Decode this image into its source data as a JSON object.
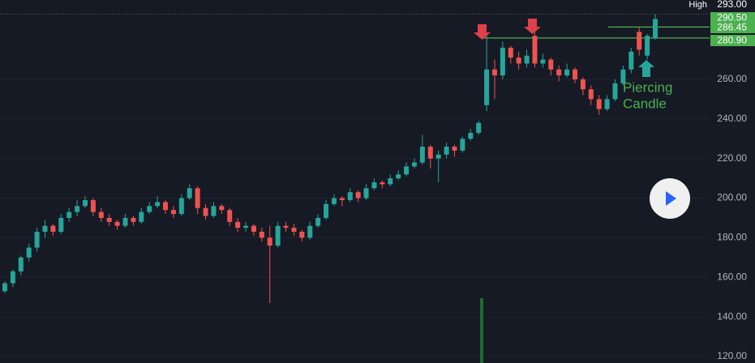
{
  "chart_data": {
    "type": "candlestick",
    "up_color": "#26a69a",
    "down_color": "#ef5350",
    "ylim": [
      116.7,
      300.1
    ],
    "yticks": [
      {
        "value": 120,
        "label": "120.00"
      },
      {
        "value": 140,
        "label": "140.00"
      },
      {
        "value": 160,
        "label": "160.00"
      },
      {
        "value": 180,
        "label": "180.00"
      },
      {
        "value": 200,
        "label": "200.00"
      },
      {
        "value": 220,
        "label": "220.00"
      },
      {
        "value": 240,
        "label": "240.00"
      },
      {
        "value": 260,
        "label": "260.00"
      }
    ],
    "grid": true,
    "high_label": "High",
    "high_value": {
      "value": 293,
      "label": "293.00"
    },
    "levels": [
      {
        "value": 290.5,
        "label": "290.50"
      },
      {
        "value": 286.45,
        "label": "286.45"
      },
      {
        "value": 280.9,
        "label": "280.90"
      }
    ],
    "level_color": "#4caf50",
    "annotation_lines": [
      "Piercing",
      "Candle"
    ],
    "candles": [
      [
        153,
        158,
        152,
        157
      ],
      [
        157,
        164,
        155,
        163
      ],
      [
        163,
        171,
        161,
        170
      ],
      [
        170,
        177,
        168,
        175
      ],
      [
        175,
        185,
        173,
        183
      ],
      [
        183,
        189,
        180,
        186
      ],
      [
        186,
        187,
        181,
        183
      ],
      [
        183,
        192,
        182,
        190
      ],
      [
        190,
        195,
        188,
        193
      ],
      [
        193,
        199,
        191,
        196
      ],
      [
        196,
        201,
        195,
        199
      ],
      [
        199,
        200,
        191,
        193
      ],
      [
        193,
        195,
        188,
        190
      ],
      [
        190,
        192,
        186,
        188
      ],
      [
        188,
        189,
        184,
        186
      ],
      [
        186,
        192,
        185,
        190
      ],
      [
        190,
        191,
        186,
        188
      ],
      [
        188,
        195,
        187,
        193
      ],
      [
        193,
        198,
        192,
        196
      ],
      [
        196,
        201,
        195,
        198
      ],
      [
        198,
        199,
        192,
        194
      ],
      [
        194,
        196,
        190,
        192
      ],
      [
        192,
        202,
        191,
        200
      ],
      [
        200,
        207,
        199,
        205
      ],
      [
        205,
        206,
        192,
        195
      ],
      [
        195,
        197,
        189,
        191
      ],
      [
        191,
        198,
        190,
        196
      ],
      [
        196,
        197,
        192,
        194
      ],
      [
        194,
        195,
        186,
        188
      ],
      [
        188,
        190,
        183,
        185
      ],
      [
        185,
        188,
        183,
        186
      ],
      [
        186,
        187,
        181,
        183
      ],
      [
        183,
        185,
        178,
        180
      ],
      [
        180,
        186,
        147,
        176
      ],
      [
        176,
        188,
        175,
        186
      ],
      [
        186,
        188,
        183,
        185
      ],
      [
        185,
        187,
        181,
        183
      ],
      [
        183,
        184,
        178,
        180
      ],
      [
        180,
        188,
        179,
        186
      ],
      [
        186,
        192,
        185,
        190
      ],
      [
        190,
        199,
        189,
        197
      ],
      [
        197,
        202,
        196,
        200
      ],
      [
        200,
        201,
        196,
        199
      ],
      [
        199,
        205,
        198,
        203
      ],
      [
        203,
        204,
        198,
        200
      ],
      [
        200,
        207,
        199,
        205
      ],
      [
        205,
        210,
        204,
        208
      ],
      [
        208,
        209,
        205,
        207
      ],
      [
        207,
        212,
        206,
        210
      ],
      [
        210,
        214,
        209,
        212
      ],
      [
        212,
        218,
        211,
        216
      ],
      [
        216,
        220,
        215,
        218
      ],
      [
        218,
        232,
        217,
        226
      ],
      [
        226,
        227,
        215,
        220
      ],
      [
        220,
        224,
        208,
        222
      ],
      [
        222,
        228,
        220,
        226
      ],
      [
        226,
        227,
        221,
        224
      ],
      [
        224,
        231,
        223,
        230
      ],
      [
        230,
        235,
        229,
        233
      ],
      [
        233,
        239,
        232,
        238
      ],
      [
        247,
        283,
        244,
        265
      ],
      [
        265,
        270,
        250,
        262
      ],
      [
        262,
        279,
        260,
        276
      ],
      [
        276,
        277,
        268,
        271
      ],
      [
        271,
        274,
        265,
        268
      ],
      [
        268,
        275,
        266,
        272
      ],
      [
        282,
        285,
        266,
        268
      ],
      [
        268,
        273,
        266,
        270
      ],
      [
        270,
        271,
        262,
        265
      ],
      [
        265,
        267,
        259,
        262
      ],
      [
        262,
        268,
        261,
        265
      ],
      [
        265,
        266,
        258,
        260
      ],
      [
        260,
        261,
        252,
        255
      ],
      [
        255,
        257,
        247,
        250
      ],
      [
        250,
        252,
        242,
        245
      ],
      [
        245,
        252,
        244,
        250
      ],
      [
        250,
        260,
        249,
        258
      ],
      [
        258,
        267,
        257,
        265
      ],
      [
        265,
        276,
        263,
        274
      ],
      [
        284,
        286.45,
        272,
        275
      ],
      [
        272,
        283,
        270,
        282
      ],
      [
        281,
        293,
        280,
        290.5
      ]
    ]
  }
}
